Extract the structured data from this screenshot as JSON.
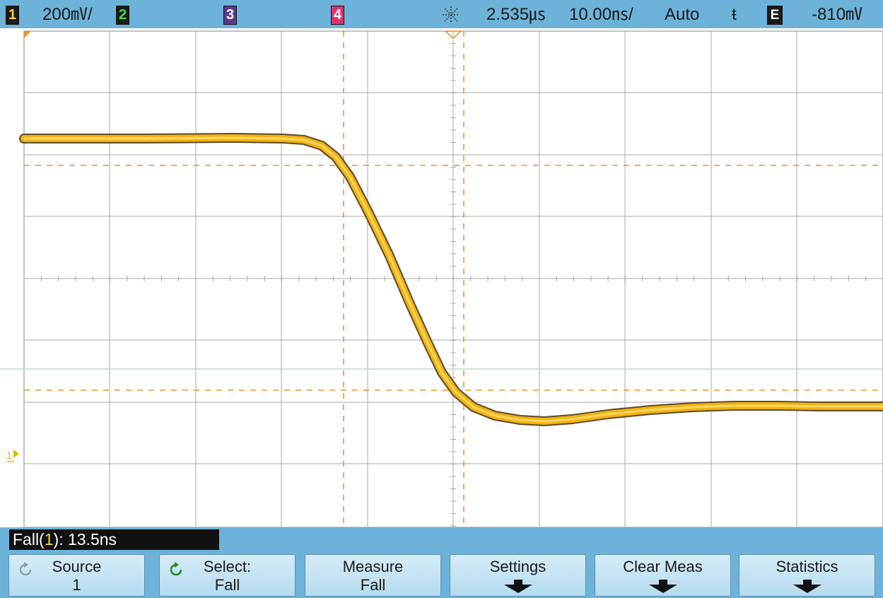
{
  "status_bar": {
    "ch1": {
      "label": "1",
      "scale": "200㎷/"
    },
    "ch2": {
      "label": "2"
    },
    "ch3": {
      "label": "3"
    },
    "ch4": {
      "label": "4"
    },
    "trigger_mode_icon": "starburst-icon",
    "time_delay": "2.535㎲",
    "time_scale": "10.00㎱/",
    "trigger_sweep": "Auto",
    "trigger_slope": "ŧ",
    "ext_label": "E",
    "trigger_level": "-810㎷"
  },
  "markers": {
    "ground_marker": "1"
  },
  "measurement": {
    "readout_prefix": "Fall(",
    "readout_channel": "1",
    "readout_suffix": "): 13.5ns"
  },
  "softkeys": [
    {
      "line1": "Source",
      "line2": "1",
      "icon": "rotate-icon"
    },
    {
      "line1": "Select:",
      "line2": "Fall",
      "icon": "green-rotate-icon"
    },
    {
      "line1": "Measure",
      "line2": "Fall"
    },
    {
      "line1": "Settings",
      "icon": "down-arrow-icon"
    },
    {
      "line1": "Clear Meas",
      "icon": "down-arrow-icon"
    },
    {
      "line1": "Statistics",
      "icon": "down-arrow-icon"
    }
  ],
  "colors": {
    "trace": "#f2b316",
    "cursor": "#f0902a",
    "panel": "#6db3d9",
    "grid": "#9a9a9a"
  }
}
